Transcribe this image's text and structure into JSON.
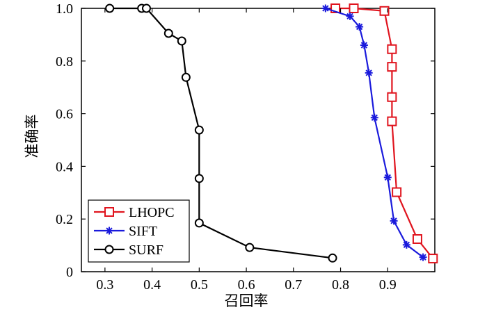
{
  "chart_data": {
    "type": "line",
    "xlabel": "召回率",
    "ylabel": "准确率",
    "xlim": [
      0.25,
      1.0
    ],
    "ylim": [
      0,
      1.0
    ],
    "xticks": [
      0.3,
      0.4,
      0.5,
      0.6,
      0.7,
      0.8,
      0.9
    ],
    "yticks": [
      0,
      0.2,
      0.4,
      0.6,
      0.8,
      1.0
    ],
    "xtick_labels": [
      "0.3",
      "0.4",
      "0.5",
      "0.6",
      "0.7",
      "0.8",
      "0.9"
    ],
    "ytick_labels": [
      "0",
      "0.2",
      "0.4",
      "0.6",
      "0.8",
      "1.0"
    ],
    "grid": false,
    "legend_position": "bottom-left",
    "series": [
      {
        "name": "LHOPC",
        "color": "#e0141e",
        "marker": "square",
        "x": [
          0.789,
          0.828,
          0.893,
          0.909,
          0.909,
          0.909,
          0.909,
          0.919,
          0.963,
          0.996
        ],
        "y": [
          1.0,
          1.0,
          0.99,
          0.845,
          0.778,
          0.663,
          0.571,
          0.302,
          0.124,
          0.05
        ]
      },
      {
        "name": "SIFT",
        "color": "#1a1adc",
        "marker": "star",
        "x": [
          0.768,
          0.82,
          0.84,
          0.85,
          0.86,
          0.872,
          0.9,
          0.913,
          0.94,
          0.975
        ],
        "y": [
          1.0,
          0.97,
          0.93,
          0.86,
          0.755,
          0.585,
          0.358,
          0.193,
          0.102,
          0.055
        ]
      },
      {
        "name": "SURF",
        "color": "#000000",
        "marker": "circle",
        "x": [
          0.31,
          0.378,
          0.388,
          0.435,
          0.463,
          0.472,
          0.5,
          0.5,
          0.5,
          0.607,
          0.783
        ],
        "y": [
          1.0,
          1.0,
          1.0,
          0.905,
          0.876,
          0.738,
          0.538,
          0.354,
          0.185,
          0.092,
          0.052
        ]
      }
    ]
  }
}
